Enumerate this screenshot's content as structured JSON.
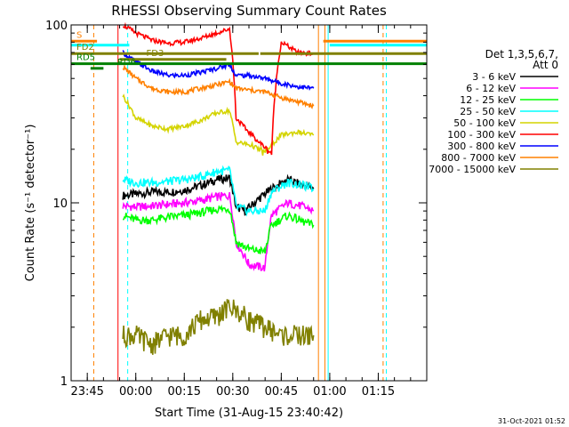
{
  "chart_data": {
    "type": "line",
    "title": "RHESSI Observing Summary Count Rates",
    "ylabel": "Count Rate (s⁻¹ detector⁻¹)",
    "xlabel": "Start Time (31-Aug-15 23:40:42)",
    "y_scale": "log",
    "ylim": [
      1,
      100
    ],
    "y_ticks": [
      {
        "value": 1,
        "label": "1"
      },
      {
        "value": 10,
        "label": "10"
      },
      {
        "value": 100,
        "label": "100"
      }
    ],
    "x_range_minutes": [
      -20,
      90
    ],
    "x_ticks": [
      {
        "minute": -15,
        "label": "23:45"
      },
      {
        "minute": 0,
        "label": "00:00"
      },
      {
        "minute": 15,
        "label": "00:15"
      },
      {
        "minute": 30,
        "label": "00:30"
      },
      {
        "minute": 45,
        "label": "00:45"
      },
      {
        "minute": 60,
        "label": "01:00"
      },
      {
        "minute": 75,
        "label": "01:15"
      }
    ],
    "legend_header": [
      "Det 1,3,5,6,7,",
      "Att 0"
    ],
    "legend_position": "right",
    "series": [
      {
        "name": "3 - 6 keV",
        "color": "#000000",
        "points": [
          [
            -4,
            11
          ],
          [
            0,
            11.2
          ],
          [
            5,
            11.5
          ],
          [
            10,
            11.5
          ],
          [
            15,
            11.8
          ],
          [
            20,
            12.5
          ],
          [
            25,
            13.5
          ],
          [
            29,
            13.8
          ],
          [
            31,
            9.5
          ],
          [
            34,
            9
          ],
          [
            38,
            10.5
          ],
          [
            42,
            12
          ],
          [
            47,
            13.5
          ],
          [
            52,
            12.5
          ],
          [
            55,
            12
          ]
        ]
      },
      {
        "name": "6 - 12 keV",
        "color": "#ff00ff",
        "points": [
          [
            -4,
            9.6
          ],
          [
            0,
            9.5
          ],
          [
            5,
            9.6
          ],
          [
            10,
            9.8
          ],
          [
            15,
            10
          ],
          [
            20,
            10.3
          ],
          [
            25,
            10.8
          ],
          [
            29,
            11
          ],
          [
            31,
            6
          ],
          [
            35,
            4.5
          ],
          [
            40,
            4.3
          ],
          [
            42,
            8.5
          ],
          [
            47,
            10
          ],
          [
            52,
            9.5
          ],
          [
            55,
            9
          ]
        ]
      },
      {
        "name": "12 - 25 keV",
        "color": "#00ff00",
        "points": [
          [
            -4,
            8.5
          ],
          [
            0,
            8
          ],
          [
            5,
            8
          ],
          [
            10,
            8.3
          ],
          [
            15,
            8.5
          ],
          [
            20,
            8.8
          ],
          [
            25,
            9.2
          ],
          [
            29,
            9.3
          ],
          [
            31,
            6
          ],
          [
            35,
            5.5
          ],
          [
            40,
            5.3
          ],
          [
            42,
            7.5
          ],
          [
            47,
            8.5
          ],
          [
            52,
            7.8
          ],
          [
            55,
            7.5
          ]
        ]
      },
      {
        "name": "25 - 50 keV",
        "color": "#00ffff",
        "points": [
          [
            -4,
            13.5
          ],
          [
            0,
            13
          ],
          [
            5,
            13
          ],
          [
            10,
            13.2
          ],
          [
            15,
            13.5
          ],
          [
            20,
            14
          ],
          [
            25,
            15
          ],
          [
            29,
            15.2
          ],
          [
            31,
            9.5
          ],
          [
            35,
            9
          ],
          [
            40,
            9
          ],
          [
            42,
            11.5
          ],
          [
            47,
            13
          ],
          [
            52,
            12.5
          ],
          [
            55,
            12
          ]
        ]
      },
      {
        "name": "50 - 100 keV",
        "color": "#d4d400",
        "points": [
          [
            -4,
            40
          ],
          [
            0,
            30
          ],
          [
            5,
            27
          ],
          [
            10,
            26
          ],
          [
            15,
            27
          ],
          [
            20,
            29
          ],
          [
            25,
            32
          ],
          [
            29,
            33
          ],
          [
            31,
            22
          ],
          [
            36,
            21
          ],
          [
            40,
            19
          ],
          [
            45,
            24
          ],
          [
            50,
            25
          ],
          [
            55,
            24
          ]
        ]
      },
      {
        "name": "100 - 300 keV",
        "color": "#ff0000",
        "points": [
          [
            -4,
            100
          ],
          [
            0,
            90
          ],
          [
            5,
            82
          ],
          [
            10,
            79
          ],
          [
            15,
            80
          ],
          [
            20,
            84
          ],
          [
            25,
            90
          ],
          [
            29,
            95
          ],
          [
            31,
            30
          ],
          [
            34,
            26
          ],
          [
            38,
            22
          ],
          [
            42,
            19
          ],
          [
            45,
            80
          ],
          [
            50,
            70
          ],
          [
            55,
            69
          ]
        ]
      },
      {
        "name": "300 - 800 keV",
        "color": "#0000ff",
        "points": [
          [
            -4,
            70
          ],
          [
            0,
            62
          ],
          [
            5,
            55
          ],
          [
            10,
            52
          ],
          [
            15,
            52
          ],
          [
            20,
            54
          ],
          [
            25,
            57
          ],
          [
            29,
            60
          ],
          [
            31,
            52
          ],
          [
            35,
            52
          ],
          [
            40,
            50
          ],
          [
            45,
            47
          ],
          [
            50,
            45
          ],
          [
            55,
            44
          ]
        ]
      },
      {
        "name": "800 - 7000 keV",
        "color": "#ff8000",
        "points": [
          [
            -4,
            58
          ],
          [
            0,
            50
          ],
          [
            5,
            44
          ],
          [
            10,
            42
          ],
          [
            15,
            42
          ],
          [
            20,
            44
          ],
          [
            25,
            46
          ],
          [
            29,
            48
          ],
          [
            31,
            44
          ],
          [
            35,
            43
          ],
          [
            40,
            42
          ],
          [
            45,
            39
          ],
          [
            50,
            37
          ],
          [
            55,
            35
          ]
        ]
      },
      {
        "name": "7000 - 15000 keV",
        "color": "#808000",
        "points": [
          [
            -4,
            1.8
          ],
          [
            0,
            1.8
          ],
          [
            5,
            1.6
          ],
          [
            10,
            1.8
          ],
          [
            15,
            1.8
          ],
          [
            20,
            2.2
          ],
          [
            25,
            2.3
          ],
          [
            29,
            2.6
          ],
          [
            31,
            2.5
          ],
          [
            35,
            2.2
          ],
          [
            40,
            2.0
          ],
          [
            45,
            1.8
          ],
          [
            50,
            1.8
          ],
          [
            55,
            1.8
          ]
        ]
      }
    ],
    "flag_bars": [
      {
        "label": "S",
        "color": "#ff8000",
        "y": 81,
        "from": -20,
        "to": -12
      },
      {
        "label": "",
        "color": "#ff8000",
        "y": 81,
        "from": 58,
        "to": 90
      },
      {
        "label": "",
        "color": "#00ffff",
        "y": 77,
        "from": -20,
        "to": -2
      },
      {
        "label": "",
        "color": "#00ffff",
        "y": 77,
        "from": 60,
        "to": 90
      },
      {
        "label": "FD2",
        "color": "#808000",
        "y": 69,
        "from": -20,
        "to": 38
      },
      {
        "label": "",
        "color": "#808000",
        "y": 69,
        "from": 38.5,
        "to": 90
      },
      {
        "label": "FD3",
        "color": "#808000",
        "y": 64,
        "from": -5,
        "to": 28
      },
      {
        "label": "RD5",
        "color": "#008000",
        "y": 60.5,
        "from": -20,
        "to": 90
      },
      {
        "label": "RD6",
        "color": "#008000",
        "y": 57,
        "from": -14,
        "to": -10
      }
    ],
    "event_lines": [
      {
        "minute": -20,
        "color": "#00ffff",
        "dashed": false
      },
      {
        "minute": -13,
        "color": "#ff8000",
        "dashed": true
      },
      {
        "minute": -5.5,
        "color": "#ff0000",
        "dashed": false
      },
      {
        "minute": -2.5,
        "color": "#00ffff",
        "dashed": true
      },
      {
        "minute": 56.5,
        "color": "#ff8000",
        "dashed": false
      },
      {
        "minute": 58.5,
        "color": "#ff8000",
        "dashed": false
      },
      {
        "minute": 59.5,
        "color": "#00ffff",
        "dashed": false
      },
      {
        "minute": 76.5,
        "color": "#ff8000",
        "dashed": true
      },
      {
        "minute": 77.5,
        "color": "#00ffff",
        "dashed": true
      }
    ],
    "footer_timestamp": "31-Oct-2021 01:52"
  }
}
